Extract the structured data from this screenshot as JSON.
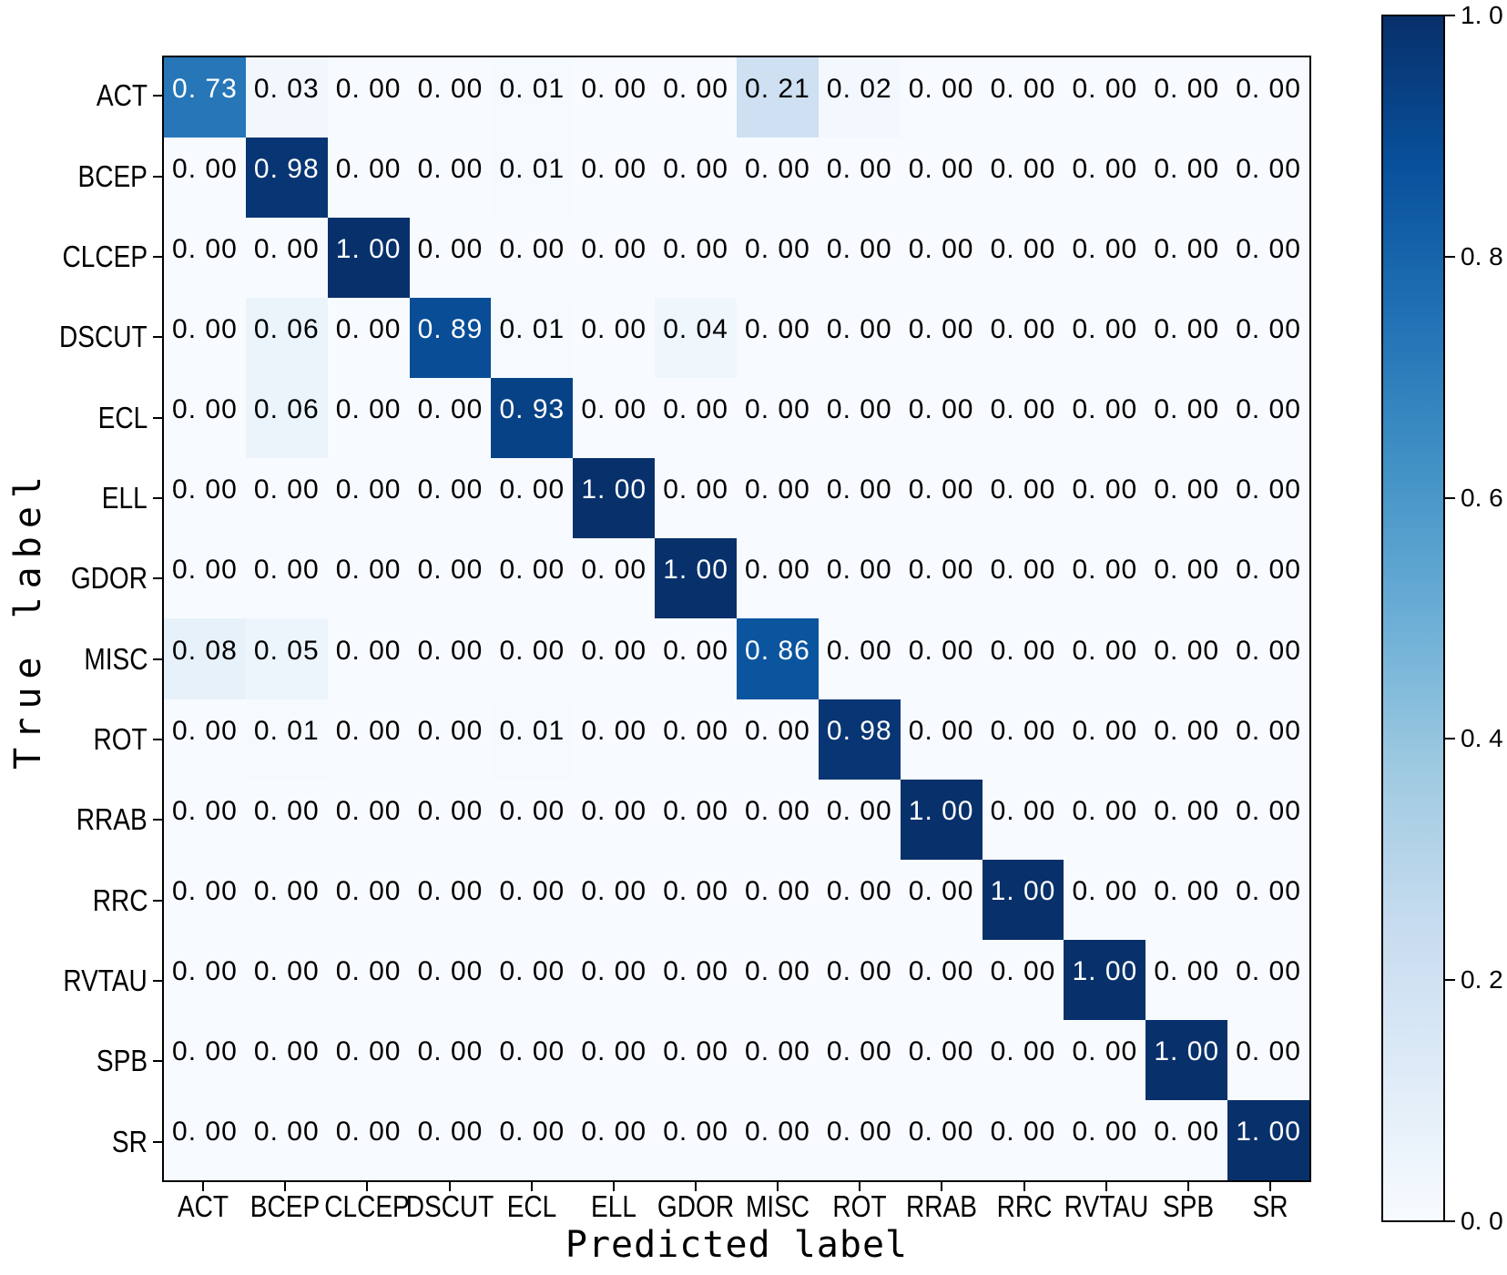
{
  "figure": {
    "background": "#ffffff",
    "axis_color": "#000000"
  },
  "chart_data": {
    "type": "heatmap",
    "subtype": "confusion-matrix",
    "xlabel": "Predicted label",
    "ylabel": "True label",
    "categories": [
      "ACT",
      "BCEP",
      "CLCEP",
      "DSCUT",
      "ECL",
      "ELL",
      "GDOR",
      "MISC",
      "ROT",
      "RRAB",
      "RRC",
      "RVTAU",
      "SPB",
      "SR"
    ],
    "matrix": [
      [
        0.73,
        0.03,
        0.0,
        0.0,
        0.01,
        0.0,
        0.0,
        0.21,
        0.02,
        0.0,
        0.0,
        0.0,
        0.0,
        0.0
      ],
      [
        0.0,
        0.98,
        0.0,
        0.0,
        0.01,
        0.0,
        0.0,
        0.0,
        0.0,
        0.0,
        0.0,
        0.0,
        0.0,
        0.0
      ],
      [
        0.0,
        0.0,
        1.0,
        0.0,
        0.0,
        0.0,
        0.0,
        0.0,
        0.0,
        0.0,
        0.0,
        0.0,
        0.0,
        0.0
      ],
      [
        0.0,
        0.06,
        0.0,
        0.89,
        0.01,
        0.0,
        0.04,
        0.0,
        0.0,
        0.0,
        0.0,
        0.0,
        0.0,
        0.0
      ],
      [
        0.0,
        0.06,
        0.0,
        0.0,
        0.93,
        0.0,
        0.0,
        0.0,
        0.0,
        0.0,
        0.0,
        0.0,
        0.0,
        0.0
      ],
      [
        0.0,
        0.0,
        0.0,
        0.0,
        0.0,
        1.0,
        0.0,
        0.0,
        0.0,
        0.0,
        0.0,
        0.0,
        0.0,
        0.0
      ],
      [
        0.0,
        0.0,
        0.0,
        0.0,
        0.0,
        0.0,
        1.0,
        0.0,
        0.0,
        0.0,
        0.0,
        0.0,
        0.0,
        0.0
      ],
      [
        0.08,
        0.05,
        0.0,
        0.0,
        0.0,
        0.0,
        0.0,
        0.86,
        0.0,
        0.0,
        0.0,
        0.0,
        0.0,
        0.0
      ],
      [
        0.0,
        0.01,
        0.0,
        0.0,
        0.01,
        0.0,
        0.0,
        0.0,
        0.98,
        0.0,
        0.0,
        0.0,
        0.0,
        0.0
      ],
      [
        0.0,
        0.0,
        0.0,
        0.0,
        0.0,
        0.0,
        0.0,
        0.0,
        0.0,
        1.0,
        0.0,
        0.0,
        0.0,
        0.0
      ],
      [
        0.0,
        0.0,
        0.0,
        0.0,
        0.0,
        0.0,
        0.0,
        0.0,
        0.0,
        0.0,
        1.0,
        0.0,
        0.0,
        0.0
      ],
      [
        0.0,
        0.0,
        0.0,
        0.0,
        0.0,
        0.0,
        0.0,
        0.0,
        0.0,
        0.0,
        0.0,
        1.0,
        0.0,
        0.0
      ],
      [
        0.0,
        0.0,
        0.0,
        0.0,
        0.0,
        0.0,
        0.0,
        0.0,
        0.0,
        0.0,
        0.0,
        0.0,
        1.0,
        0.0
      ],
      [
        0.0,
        0.0,
        0.0,
        0.0,
        0.0,
        0.0,
        0.0,
        0.0,
        0.0,
        0.0,
        0.0,
        0.0,
        0.0,
        1.0
      ]
    ],
    "value_decimals": 2,
    "decimal_separator_display": ". ",
    "text_on_dark": "#ffffff",
    "text_on_light": "#000000",
    "text_color_threshold": 0.5,
    "grid": false,
    "colormap": {
      "name": "Blues",
      "anchors": [
        {
          "pos": 0.0,
          "color": "#f7fbff"
        },
        {
          "pos": 0.125,
          "color": "#deebf7"
        },
        {
          "pos": 0.25,
          "color": "#c6dbef"
        },
        {
          "pos": 0.375,
          "color": "#9ecae1"
        },
        {
          "pos": 0.5,
          "color": "#6baed6"
        },
        {
          "pos": 0.625,
          "color": "#4292c6"
        },
        {
          "pos": 0.75,
          "color": "#2171b5"
        },
        {
          "pos": 0.875,
          "color": "#08519c"
        },
        {
          "pos": 1.0,
          "color": "#08306b"
        }
      ]
    },
    "colorbar": {
      "vmin": 0.0,
      "vmax": 1.0,
      "ticks": [
        1.0,
        0.8,
        0.6,
        0.4,
        0.2,
        0.0
      ],
      "tick_decimals": 1,
      "position": "right"
    }
  }
}
